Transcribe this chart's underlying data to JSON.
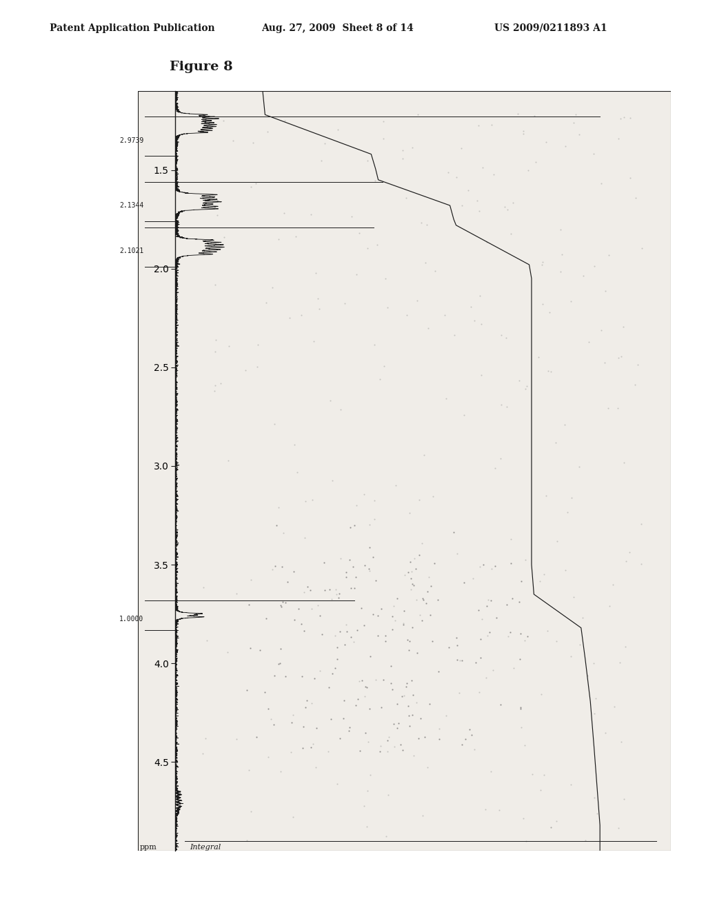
{
  "header_left": "Patent Application Publication",
  "header_center": "Aug. 27, 2009  Sheet 8 of 14",
  "header_right": "US 2009/0211893 A1",
  "figure_label": "Figure 8",
  "bg_color": "#ffffff",
  "plot_bg": "#f0ede8",
  "axis_label": "ppm",
  "integral_label": "Integral",
  "y_axis_ticks": [
    4.5,
    4.0,
    3.5,
    3.0,
    2.5,
    2.0,
    1.5
  ],
  "y_min": 1.1,
  "y_max": 4.95,
  "integral_values": [
    {
      "ppm": 3.75,
      "label": "1.0000"
    },
    {
      "ppm": 1.85,
      "label": "2.1021"
    },
    {
      "ppm": 1.65,
      "label": "2.1344"
    },
    {
      "ppm": 1.28,
      "label": "2.9739"
    }
  ],
  "spine_color": "#1a1a1a",
  "text_color": "#1a1a1a",
  "noise_seed": 42,
  "header_fontsize": 10,
  "figure_fontsize": 14
}
